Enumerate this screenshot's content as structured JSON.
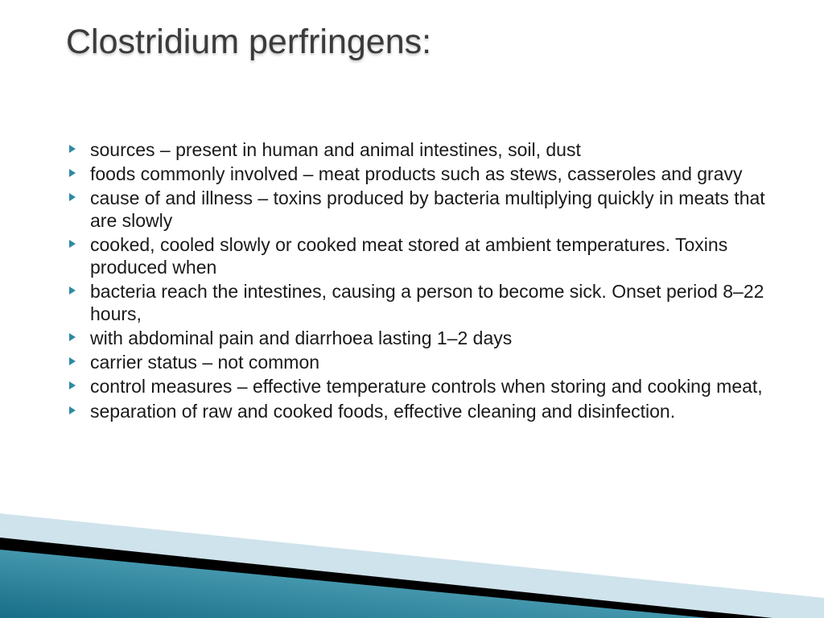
{
  "title": "Clostridium perfringens:",
  "accent_color": "#2f8aa3",
  "text_color": "#1a1a1a",
  "title_color": "#3b3b3b",
  "title_fontsize": 43,
  "body_fontsize": 23,
  "background_color": "#ffffff",
  "bullets": [
    "sources – present in human and animal intestines, soil, dust",
    "foods commonly involved – meat products such as stews, casseroles and gravy",
    "cause of and illness – toxins produced by bacteria multiplying quickly in meats that are slowly",
    "cooked, cooled slowly or cooked meat stored at ambient temperatures. Toxins produced when",
    "bacteria reach the intestines, causing a person to become sick. Onset period 8–22 hours,",
    "with abdominal pain and diarrhoea lasting 1–2 days",
    "carrier status – not common",
    "control measures – effective temperature controls when storing and cooking meat,",
    "separation of raw and cooked foods, effective cleaning and disinfection."
  ],
  "decoration": {
    "light_blue": "#cfe3ec",
    "black": "#000000",
    "teal_dark": "#186e87",
    "teal_light": "#5db2c7"
  }
}
